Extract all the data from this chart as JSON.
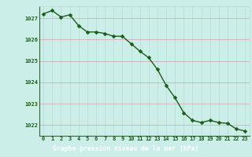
{
  "hours": [
    0,
    1,
    2,
    3,
    4,
    5,
    6,
    7,
    8,
    9,
    10,
    11,
    12,
    13,
    14,
    15,
    16,
    17,
    18,
    19,
    20,
    21,
    22,
    23
  ],
  "pressure": [
    1027.2,
    1027.35,
    1027.05,
    1027.15,
    1026.65,
    1026.35,
    1026.35,
    1026.28,
    1026.15,
    1026.15,
    1025.8,
    1025.45,
    1025.15,
    1024.6,
    1023.85,
    1023.28,
    1022.58,
    1022.22,
    1022.12,
    1022.22,
    1022.12,
    1022.08,
    1021.82,
    1021.72
  ],
  "line_color": "#1a5c1a",
  "marker_color": "#1a5c1a",
  "bg_color": "#cceee8",
  "grid_color_v": "#b8d8d0",
  "grid_color_h": "#c8a8a8",
  "xlabel": "Graphe pression niveau de la mer (hPa)",
  "xlabel_bg": "#2d6b2d",
  "xlabel_color": "#ffffff",
  "ylim_min": 1021.5,
  "ylim_max": 1027.55,
  "yticks": [
    1022,
    1023,
    1024,
    1025,
    1026,
    1027
  ],
  "marker_size": 2.5,
  "line_width": 1.0,
  "tick_fontsize": 5.0,
  "label_fontsize": 5.8
}
